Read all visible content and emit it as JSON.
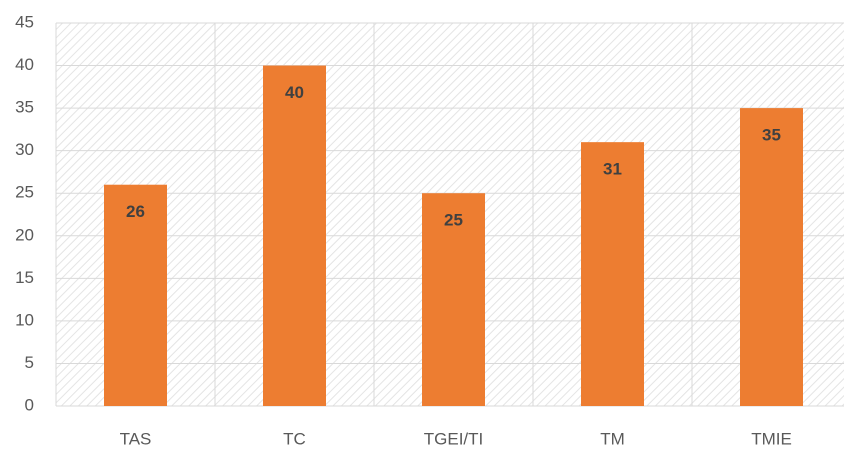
{
  "chart_data": {
    "type": "bar",
    "categories": [
      "TAS",
      "TC",
      "TGEI/TI",
      "TM",
      "TMIE"
    ],
    "values": [
      26,
      40,
      25,
      31,
      35
    ],
    "color": "#ed7d31",
    "ylim": [
      0,
      45
    ],
    "yticks": [
      0,
      5,
      10,
      15,
      20,
      25,
      30,
      35,
      40,
      45
    ],
    "grid": true
  }
}
